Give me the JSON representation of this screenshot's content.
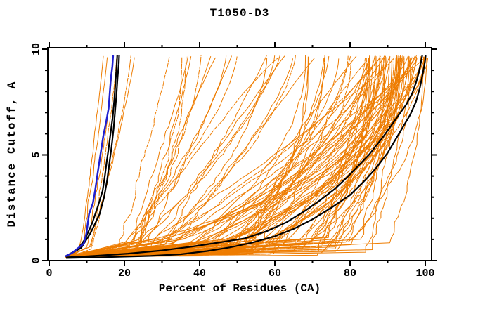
{
  "title": "T1050-D3",
  "axes": {
    "x": {
      "label": "Percent of Residues (CA)",
      "min": 0,
      "max": 100,
      "major_ticks": [
        0,
        20,
        40,
        60,
        80,
        100
      ],
      "minor_ticks": [
        10,
        30,
        50,
        70,
        90
      ]
    },
    "y": {
      "label": "Distance Cutoff, A",
      "min": 0,
      "max": 10,
      "major_ticks": [
        0,
        5,
        10
      ],
      "minor_ticks": [
        1,
        2,
        3,
        4,
        6,
        7,
        8,
        9
      ]
    }
  },
  "colors": {
    "background": "#FFFFFF",
    "frame": "#000000",
    "ensemble": "#EE7C00",
    "highlight": "#000000",
    "reference": "#2020D0"
  },
  "chart_data": {
    "type": "line",
    "title": "T1050-D3",
    "xlabel": "Percent of Residues (CA)",
    "ylabel": "Distance Cutoff, A",
    "xlim": [
      0,
      101.7
    ],
    "ylim": [
      0,
      10.07
    ],
    "grid": false,
    "legend": "none",
    "series": [
      {
        "name": "highlighted-model-left-1",
        "color": "#000000",
        "width": 2.2,
        "points": [
          [
            4.3,
            0.2
          ],
          [
            7.5,
            0.5
          ],
          [
            9.5,
            1.0
          ],
          [
            11.5,
            1.8
          ],
          [
            13.0,
            2.6
          ],
          [
            14.2,
            3.3
          ],
          [
            14.8,
            4.0
          ],
          [
            15.3,
            4.7
          ],
          [
            15.8,
            5.3
          ],
          [
            16.3,
            6.0
          ],
          [
            16.9,
            6.8
          ],
          [
            17.3,
            7.6
          ],
          [
            17.6,
            8.4
          ],
          [
            17.9,
            9.1
          ],
          [
            18.1,
            9.7
          ]
        ]
      },
      {
        "name": "highlighted-model-left-2",
        "color": "#000000",
        "width": 2.2,
        "points": [
          [
            4.3,
            0.2
          ],
          [
            8.5,
            0.6
          ],
          [
            11.0,
            1.3
          ],
          [
            13.4,
            2.2
          ],
          [
            14.6,
            3.0
          ],
          [
            15.4,
            3.8
          ],
          [
            16.0,
            4.6
          ],
          [
            16.6,
            5.4
          ],
          [
            17.1,
            6.2
          ],
          [
            17.5,
            7.0
          ],
          [
            17.9,
            7.9
          ],
          [
            18.2,
            8.7
          ],
          [
            18.5,
            9.3
          ],
          [
            18.6,
            9.7
          ]
        ]
      },
      {
        "name": "highlighted-model-right-1",
        "color": "#000000",
        "width": 2.2,
        "points": [
          [
            4.5,
            0.15
          ],
          [
            12,
            0.22
          ],
          [
            21,
            0.33
          ],
          [
            30,
            0.48
          ],
          [
            38,
            0.66
          ],
          [
            45,
            0.85
          ],
          [
            52,
            1.05
          ],
          [
            58,
            1.4
          ],
          [
            63,
            1.8
          ],
          [
            68,
            2.35
          ],
          [
            72,
            2.85
          ],
          [
            76,
            3.4
          ],
          [
            79,
            3.9
          ],
          [
            82,
            4.45
          ],
          [
            85,
            5.0
          ],
          [
            87,
            5.45
          ],
          [
            89,
            5.9
          ],
          [
            91,
            6.4
          ],
          [
            93,
            6.9
          ],
          [
            95,
            7.4
          ],
          [
            96.5,
            7.9
          ],
          [
            97.5,
            8.4
          ],
          [
            98.3,
            8.9
          ],
          [
            98.8,
            9.35
          ],
          [
            99.2,
            9.7
          ]
        ]
      },
      {
        "name": "highlighted-model-right-2",
        "color": "#000000",
        "width": 2.2,
        "points": [
          [
            4.5,
            0.12
          ],
          [
            15,
            0.16
          ],
          [
            27,
            0.22
          ],
          [
            35,
            0.3
          ],
          [
            42,
            0.45
          ],
          [
            48,
            0.62
          ],
          [
            54,
            0.85
          ],
          [
            60,
            1.15
          ],
          [
            65,
            1.5
          ],
          [
            70,
            1.95
          ],
          [
            75,
            2.5
          ],
          [
            80,
            3.1
          ],
          [
            84,
            3.8
          ],
          [
            87,
            4.4
          ],
          [
            90,
            5.1
          ],
          [
            92,
            5.7
          ],
          [
            94,
            6.3
          ],
          [
            96,
            6.9
          ],
          [
            97.5,
            7.5
          ],
          [
            98.6,
            8.2
          ],
          [
            99.4,
            8.9
          ],
          [
            99.9,
            9.4
          ],
          [
            100.1,
            9.7
          ]
        ]
      },
      {
        "name": "reference-model-blue",
        "color": "#2020D0",
        "width": 2.5,
        "points": [
          [
            4.3,
            0.2
          ],
          [
            6.0,
            0.35
          ],
          [
            9.2,
            0.8
          ],
          [
            9.9,
            1.3
          ],
          [
            10.6,
            2.2
          ],
          [
            11.6,
            2.7
          ],
          [
            12.2,
            3.3
          ],
          [
            12.7,
            3.9
          ],
          [
            13.2,
            4.5
          ],
          [
            13.7,
            5.1
          ],
          [
            14.4,
            5.9
          ],
          [
            15.2,
            6.6
          ],
          [
            15.8,
            7.2
          ],
          [
            16.1,
            7.9
          ],
          [
            16.4,
            8.6
          ],
          [
            16.8,
            9.2
          ],
          [
            17.0,
            9.7
          ]
        ]
      }
    ],
    "ensemble": {
      "name": "server-model-curves",
      "color": "#EE7C00",
      "count": 110,
      "seed": 20251,
      "start_x": [
        4.2,
        5.8
      ],
      "start_y": [
        0.12,
        0.22
      ],
      "end_y": [
        9.55,
        9.72
      ],
      "groups": [
        {
          "n": 6,
          "topx": [
            14,
            23
          ],
          "frac": [
            0.25,
            0.45
          ],
          "knee_y": [
            0.4,
            0.9
          ],
          "q": [
            1.0,
            1.5
          ],
          "jitter": 0.6
        },
        {
          "n": 16,
          "topx": [
            24,
            62
          ],
          "frac": [
            0.3,
            0.6
          ],
          "knee_y": [
            0.35,
            1.0
          ],
          "q": [
            0.8,
            2.0
          ],
          "jitter": 1.6
        },
        {
          "n": 16,
          "topx": [
            62,
            84
          ],
          "frac": [
            0.35,
            0.75
          ],
          "knee_y": [
            0.3,
            1.0
          ],
          "q": [
            0.8,
            2.4
          ],
          "jitter": 1.8
        },
        {
          "n": 72,
          "topx": [
            84,
            100.8
          ],
          "frac": [
            0.25,
            0.92
          ],
          "knee_y": [
            0.25,
            1.1
          ],
          "q": [
            0.9,
            2.8
          ],
          "jitter": 1.4
        }
      ]
    }
  }
}
